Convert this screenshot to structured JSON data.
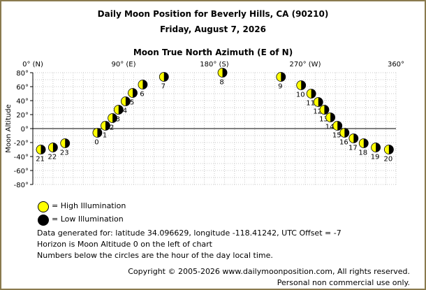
{
  "header": {
    "title": "Daily Moon Position for Beverly Hills, CA (90210)",
    "date": "Friday, August 7, 2026"
  },
  "chart_data": {
    "type": "scatter",
    "title": "Moon True North Azimuth (E of N)",
    "xlabel": "Moon True North Azimuth (E of N)",
    "ylabel": "Moon Altitude",
    "xlim": [
      0,
      360
    ],
    "ylim": [
      -80,
      80
    ],
    "grid": true,
    "x_ticks": [
      {
        "value": 0,
        "label": "0° (N)"
      },
      {
        "value": 90,
        "label": "90° (E)"
      },
      {
        "value": 180,
        "label": "180° (S)"
      },
      {
        "value": 270,
        "label": "270° (W)"
      },
      {
        "value": 360,
        "label": "360°"
      }
    ],
    "y_ticks": [
      {
        "value": 80,
        "label": "80°"
      },
      {
        "value": 60,
        "label": "60°"
      },
      {
        "value": 40,
        "label": "40°"
      },
      {
        "value": 20,
        "label": "20°"
      },
      {
        "value": 0,
        "label": "0°"
      },
      {
        "value": -20,
        "label": "-20°"
      },
      {
        "value": -40,
        "label": "-40°"
      },
      {
        "value": -60,
        "label": "-60°"
      },
      {
        "value": -80,
        "label": "-80°"
      }
    ],
    "horizon_altitude": 0,
    "points": [
      {
        "hour": "0",
        "az": 64,
        "alt": -6
      },
      {
        "hour": "1",
        "az": 72,
        "alt": 4
      },
      {
        "hour": "2",
        "az": 79,
        "alt": 15
      },
      {
        "hour": "3",
        "az": 85,
        "alt": 27
      },
      {
        "hour": "4",
        "az": 92,
        "alt": 39
      },
      {
        "hour": "5",
        "az": 99,
        "alt": 51
      },
      {
        "hour": "6",
        "az": 109,
        "alt": 63
      },
      {
        "hour": "7",
        "az": 130,
        "alt": 74
      },
      {
        "hour": "8",
        "az": 188,
        "alt": 80
      },
      {
        "hour": "9",
        "az": 246,
        "alt": 74
      },
      {
        "hour": "10",
        "az": 266,
        "alt": 62
      },
      {
        "hour": "11",
        "az": 276,
        "alt": 50
      },
      {
        "hour": "12",
        "az": 283,
        "alt": 38
      },
      {
        "hour": "13",
        "az": 289,
        "alt": 27
      },
      {
        "hour": "14",
        "az": 295,
        "alt": 16
      },
      {
        "hour": "15",
        "az": 302,
        "alt": 4
      },
      {
        "hour": "16",
        "az": 309,
        "alt": -6
      },
      {
        "hour": "17",
        "az": 318,
        "alt": -14
      },
      {
        "hour": "18",
        "az": 328,
        "alt": -21
      },
      {
        "hour": "19",
        "az": 340,
        "alt": -27
      },
      {
        "hour": "20",
        "az": 353,
        "alt": -30
      },
      {
        "hour": "21",
        "az": 8,
        "alt": -30
      },
      {
        "hour": "22",
        "az": 20,
        "alt": -27
      },
      {
        "hour": "23",
        "az": 32,
        "alt": -21
      }
    ],
    "illumination": "high",
    "colors": {
      "high": "#ffff00",
      "low": "#000000",
      "grid": "#c8c8c8"
    }
  },
  "legend": {
    "high_label": "= High Illumination",
    "low_label": "= Low Illumination"
  },
  "footer": {
    "line1": "Data generated for: latitude 34.096629, longitude -118.41242, UTC Offset = -7",
    "line2": "Horizon is Moon Altitude 0 on the left of chart",
    "line3": "Numbers below the circles are the hour of the day local time.",
    "copyright": "Copyright © 2005-2026 www.dailymoonposition.com, All rights reserved.",
    "personal": "Personal non commercial use only."
  }
}
